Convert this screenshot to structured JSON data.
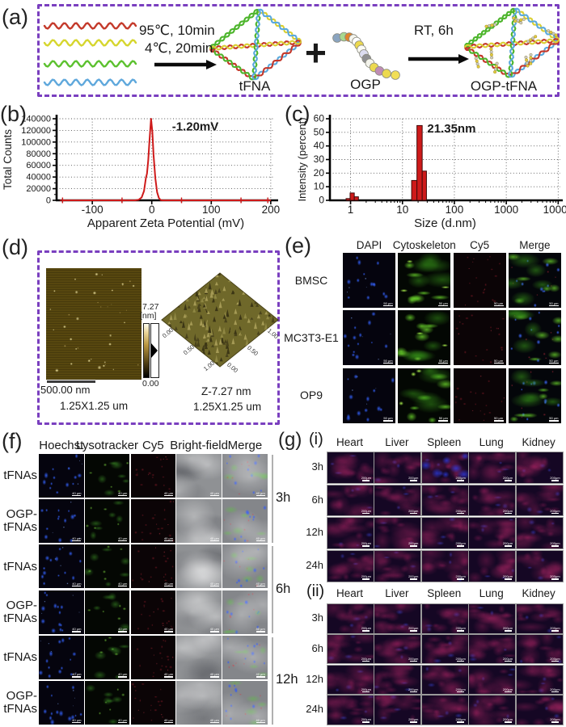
{
  "panel_labels": {
    "a": "(a)",
    "b": "(b)",
    "c": "(c)",
    "d": "(d)",
    "e": "(e)",
    "f": "(f)",
    "g": "(g)"
  },
  "panel_a": {
    "strand_colors": [
      "#c43a2b",
      "#d6d62e",
      "#5cc12f",
      "#5fa8dc"
    ],
    "anneal_step": [
      "95℃, 10min",
      "4℃, 20min"
    ],
    "plus_sign": "+",
    "tfna_label": "tFNA",
    "ogp_label": "OGP",
    "incubation_step": "RT, 6h",
    "product_label": "OGP-tFNA",
    "border_color": "#7a3fbf",
    "tetra_edge_colors": {
      "green": "#4db52c",
      "yellow": "#d9cf33",
      "red": "#c4372a",
      "blue": "#5aa9dd"
    },
    "ogp_bead_colors": [
      "#8aa4c0",
      "#a8d890",
      "#e0832c",
      "#f6f6ee",
      "#ffffff",
      "#ecd94e",
      "#fbfbf5",
      "#dcdcf0",
      "#8f8f93",
      "#f4f4ec",
      "#ecd94e",
      "#bf8cb4",
      "#ecd94e",
      "#f2df57"
    ]
  },
  "chart_data": [
    {
      "type": "line",
      "panel": "b",
      "xlabel": "Apparent Zeta Potential (mV)",
      "ylabel": "Total Counts",
      "xlim": [
        -160,
        207
      ],
      "ylim": [
        0,
        140000
      ],
      "xticks": [
        -100,
        0,
        100,
        200
      ],
      "xticks_minor": [
        -150,
        -50,
        50,
        150
      ],
      "yticks": [
        0,
        20000,
        40000,
        60000,
        80000,
        100000,
        120000,
        140000
      ],
      "grid": true,
      "legend": false,
      "annotation": {
        "text": "-1.20mV",
        "x": 34,
        "y": 127000
      },
      "series": [
        {
          "name": "zeta potential distribution",
          "color": "#ce1a1a",
          "points": [
            [
              -150,
              0
            ],
            [
              -100,
              0
            ],
            [
              -50,
              0
            ],
            [
              -28,
              0
            ],
            [
              -22,
              1000
            ],
            [
              -17,
              5000
            ],
            [
              -13,
              16000
            ],
            [
              -10,
              38000
            ],
            [
              -8,
              46000
            ],
            [
              -6,
              68000
            ],
            [
              -4,
              101000
            ],
            [
              -1.2,
              140000
            ],
            [
              1,
              118000
            ],
            [
              3,
              78000
            ],
            [
              6,
              38000
            ],
            [
              9,
              14000
            ],
            [
              12,
              4000
            ],
            [
              15,
              500
            ],
            [
              18,
              0
            ],
            [
              50,
              0
            ],
            [
              100,
              0
            ],
            [
              150,
              0
            ],
            [
              200,
              0
            ]
          ],
          "marker_x": [
            -150,
            -50,
            50,
            150,
            195
          ],
          "peak_value_mV": -1.2
        }
      ]
    },
    {
      "type": "bar",
      "panel": "c",
      "xlabel": "Size (d.nm)",
      "ylabel": "Intensity (percent)",
      "xscale": "log",
      "xlim": [
        0.4,
        11000
      ],
      "ylim": [
        0,
        60
      ],
      "xticks": [
        1,
        10,
        100,
        1000,
        10000
      ],
      "yticks": [
        0,
        10,
        20,
        30,
        40,
        50,
        60
      ],
      "grid": true,
      "annotation": {
        "text": "21.35nm",
        "x": 30,
        "y": 53
      },
      "color": "#ce1a1a",
      "bars": [
        {
          "x1": 0.82,
          "x2": 0.98,
          "height": 1.3
        },
        {
          "x1": 0.98,
          "x2": 1.18,
          "height": 5.4
        },
        {
          "x1": 1.18,
          "x2": 1.42,
          "height": 2.6
        },
        {
          "x1": 15,
          "x2": 19,
          "height": 14.6
        },
        {
          "x1": 19,
          "x2": 24,
          "height": 55
        },
        {
          "x1": 24,
          "x2": 29,
          "height": 21.5
        }
      ],
      "peak_size_nm": 21.35
    }
  ],
  "panel_d": {
    "colorbar_max": "7.27",
    "colorbar_unit": "[nm]",
    "colorbar_min": "0.00",
    "scalebar_label": "500.00 nm",
    "image2d_size": "1.25X1.25 um",
    "z_range": "Z-7.27 nm",
    "image3d_size": "1.25X1.25 um",
    "axis_ticks_3d": [
      "0.00",
      "0.50",
      "1.00"
    ],
    "border_color": "#7a3fbf"
  },
  "panel_e": {
    "columns": [
      "DAPI",
      "Cytoskeleton",
      "Cy5",
      "Merge"
    ],
    "rows": [
      "BMSC",
      "MC3T3-E1",
      "OP9"
    ],
    "scale_bar": "50 μm"
  },
  "panel_f": {
    "columns": [
      "Hoechst",
      "Lysotracker",
      "Cy5",
      "Bright-field",
      "Merge"
    ],
    "row_labels": [
      "tFNAs",
      "OGP-tFNAs",
      "tFNAs",
      "OGP-tFNAs",
      "tFNAs",
      "OGP-tFNAs"
    ],
    "time_labels": [
      "3h",
      "6h",
      "12h"
    ],
    "scale_bar": "40 μm"
  },
  "panel_g": {
    "columns": [
      "Heart",
      "Liver",
      "Spleen",
      "Lung",
      "Kidney"
    ],
    "row_labels": [
      "3h",
      "6h",
      "12h",
      "24h"
    ],
    "subpanel_labels": [
      "(i)",
      "(ii)"
    ],
    "scale_bar": "200μm"
  }
}
